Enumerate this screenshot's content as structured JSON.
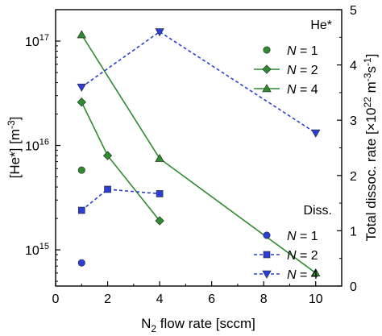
{
  "chart_data": {
    "type": "line",
    "x_axis": {
      "label_main": "N",
      "label_sub": "2",
      "label_rest": " flow rate [sccm]",
      "range": [
        0,
        11
      ],
      "ticks": [
        0,
        2,
        4,
        6,
        8,
        10
      ]
    },
    "y_left": {
      "label": "[He*] [m",
      "label_sup": "-3",
      "label_close": "]",
      "scale": "log",
      "range": [
        450000000000000.0,
        2e+17
      ],
      "ticks": [
        {
          "value": 1000000000000000.0,
          "base": "10",
          "exp": "15"
        },
        {
          "value": 1e+16,
          "base": "10",
          "exp": "16"
        },
        {
          "value": 1e+17,
          "base": "10",
          "exp": "17"
        }
      ]
    },
    "y_right": {
      "label_a": "Total dissoc. rate [×10",
      "label_sup1": "22",
      "label_b": " m",
      "label_sup2": "-3",
      "label_c": "s",
      "label_sup3": "-1",
      "label_d": "]",
      "scale": "linear",
      "range": [
        0,
        5
      ],
      "ticks": [
        0,
        1,
        2,
        3,
        4,
        5
      ]
    },
    "legend_groups": [
      {
        "title": "He*",
        "placement": "top-right"
      },
      {
        "title": "Diss.",
        "placement": "bottom-right"
      }
    ],
    "series": [
      {
        "name_prefix": "N",
        "name_suffix": " = 1",
        "group": "He*",
        "axis": "left",
        "color": "#2e8b2e",
        "marker": "circle",
        "line": "none",
        "x": [
          1
        ],
        "y": [
          5800000000000000.0
        ]
      },
      {
        "name_prefix": "N",
        "name_suffix": " = 2",
        "group": "He*",
        "axis": "left",
        "color": "#2e8b2e",
        "marker": "diamond",
        "line": "solid",
        "x": [
          1,
          2,
          4
        ],
        "y": [
          2.6e+16,
          8000000000000000.0,
          1900000000000000.0
        ]
      },
      {
        "name_prefix": "N",
        "name_suffix": " = 4",
        "group": "He*",
        "axis": "left",
        "color": "#2e8b2e",
        "marker": "triangle-up",
        "line": "solid",
        "x": [
          1,
          4,
          10
        ],
        "y": [
          1.15e+17,
          7500000000000000.0,
          600000000000000.0
        ]
      },
      {
        "name_prefix": "N",
        "name_suffix": " = 1",
        "group": "Diss.",
        "axis": "right",
        "color": "#2b3fd6",
        "marker": "circle",
        "line": "none",
        "x": [
          1
        ],
        "y": [
          0.42
        ]
      },
      {
        "name_prefix": "N",
        "name_suffix": " = 2",
        "group": "Diss.",
        "axis": "right",
        "color": "#2b3fd6",
        "marker": "square",
        "line": "dashed",
        "x": [
          1,
          2,
          4
        ],
        "y": [
          1.37,
          1.75,
          1.67
        ]
      },
      {
        "name_prefix": "N",
        "name_suffix": " = 4",
        "group": "Diss.",
        "axis": "right",
        "color": "#2b3fd6",
        "marker": "triangle-down",
        "line": "dashed",
        "x": [
          1,
          4,
          10
        ],
        "y": [
          3.6,
          4.6,
          2.77
        ]
      }
    ]
  }
}
